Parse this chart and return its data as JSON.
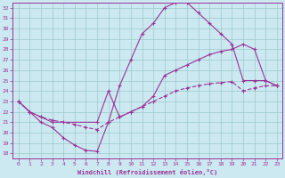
{
  "xlabel": "Windchill (Refroidissement éolien,°C)",
  "bg_color": "#cce8f0",
  "line_color": "#993399",
  "grid_color": "#99cccc",
  "xlim": [
    -0.5,
    23.5
  ],
  "ylim": [
    17.5,
    32.5
  ],
  "yticks": [
    18,
    19,
    20,
    21,
    22,
    23,
    24,
    25,
    26,
    27,
    28,
    29,
    30,
    31,
    32
  ],
  "xticks": [
    0,
    1,
    2,
    3,
    4,
    5,
    6,
    7,
    8,
    9,
    10,
    11,
    12,
    13,
    14,
    15,
    16,
    17,
    18,
    19,
    20,
    21,
    22,
    23
  ],
  "curve1_x": [
    0,
    1,
    2,
    3,
    4,
    5,
    6,
    7,
    8,
    9,
    10,
    11,
    12,
    13,
    14,
    15,
    16,
    17,
    18,
    19,
    20,
    21,
    22,
    23
  ],
  "curve1_y": [
    23.0,
    22.0,
    21.0,
    20.5,
    19.5,
    18.8,
    18.3,
    18.2,
    21.0,
    24.5,
    27.0,
    29.5,
    30.5,
    32.0,
    32.5,
    32.5,
    31.5,
    30.5,
    29.5,
    28.5,
    25.0,
    25.0,
    25.0,
    24.5
  ],
  "curve2_x": [
    0,
    1,
    2,
    3,
    7,
    8,
    9,
    10,
    11,
    12,
    13,
    14,
    15,
    16,
    17,
    18,
    19,
    20,
    21,
    22,
    23
  ],
  "curve2_y": [
    23.0,
    22.0,
    21.5,
    21.0,
    21.0,
    24.0,
    21.5,
    22.0,
    22.5,
    23.5,
    25.5,
    26.0,
    26.5,
    27.0,
    27.5,
    27.8,
    28.0,
    28.5,
    28.0,
    25.0,
    24.5
  ],
  "curve3_x": [
    0,
    1,
    2,
    3,
    4,
    5,
    6,
    7,
    8,
    9,
    10,
    11,
    12,
    13,
    14,
    15,
    16,
    17,
    18,
    19,
    20,
    21,
    22,
    23
  ],
  "curve3_y": [
    23.0,
    22.0,
    21.5,
    21.2,
    21.0,
    20.8,
    20.5,
    20.3,
    21.0,
    21.5,
    22.0,
    22.5,
    23.0,
    23.5,
    24.0,
    24.3,
    24.5,
    24.7,
    24.8,
    24.9,
    24.0,
    24.3,
    24.5,
    24.5
  ]
}
